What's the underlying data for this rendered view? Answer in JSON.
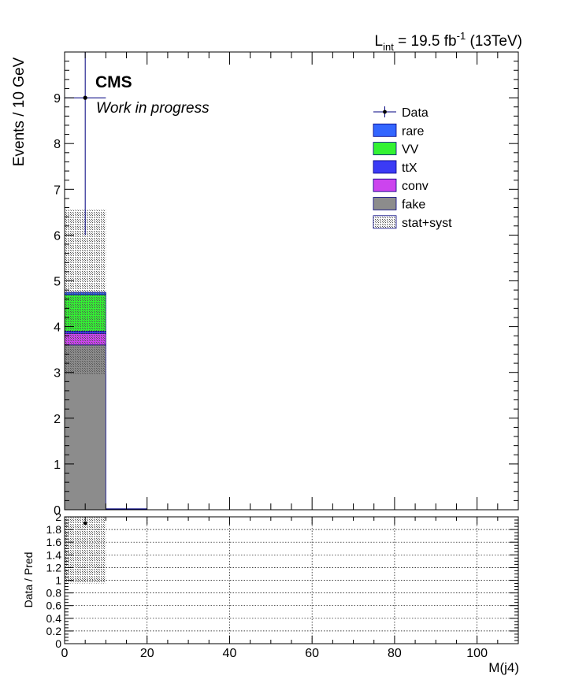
{
  "header": {
    "lumi_prefix": "L",
    "lumi_sub": "int",
    "lumi_mid": " = 19.5 fb",
    "lumi_sup": "-1",
    "lumi_suffix": " (13TeV)",
    "cms_label": "CMS",
    "cms_sublabel": "Work in progress"
  },
  "chart_data": [
    {
      "type": "bar",
      "subtype": "stacked-histogram",
      "ylabel": "Events / 10 GeV",
      "xlim": [
        0,
        110
      ],
      "ylim": [
        0,
        10
      ],
      "y_ticks": [
        0,
        1,
        2,
        3,
        4,
        5,
        6,
        7,
        8,
        9
      ],
      "x_ticks": [
        0,
        20,
        40,
        60,
        80,
        100
      ],
      "bin_width": 10,
      "bins": [
        [
          0,
          10
        ],
        [
          10,
          20
        ]
      ],
      "grid": false,
      "legend_position": "top-right",
      "series": [
        {
          "name": "fake",
          "color": "#8c8c8c",
          "values": [
            3.6,
            0.0
          ]
        },
        {
          "name": "conv",
          "color": "#cc44ee",
          "values": [
            0.25,
            0.0
          ]
        },
        {
          "name": "ttX",
          "color": "#3b3bf5",
          "values": [
            0.05,
            0.0
          ]
        },
        {
          "name": "VV",
          "color": "#33f233",
          "values": [
            0.8,
            0.0
          ]
        },
        {
          "name": "rare",
          "color": "#3366ff",
          "values": [
            0.05,
            0.0
          ]
        }
      ],
      "uncertainty": {
        "name": "stat+syst",
        "down": [
          2.95,
          0.0
        ],
        "up": [
          6.55,
          0.0
        ]
      },
      "data": {
        "name": "Data",
        "x": [
          5
        ],
        "y": [
          9
        ],
        "err_low": [
          3
        ],
        "err_high": [
          4.1
        ],
        "x_err": [
          5
        ]
      }
    },
    {
      "type": "scatter",
      "subtype": "ratio",
      "ylabel": "Data / Pred",
      "xlabel": "M(j4)",
      "xlim": [
        0,
        110
      ],
      "ylim": [
        0,
        2
      ],
      "x_ticks": [
        0,
        20,
        40,
        60,
        80,
        100
      ],
      "y_ticks": [
        0,
        0.2,
        0.4,
        0.6,
        0.8,
        1,
        1.2,
        1.4,
        1.6,
        1.8,
        2
      ],
      "grid": true,
      "points": [
        {
          "x": 5,
          "y": 1.9
        }
      ],
      "uncertainty_band": [
        {
          "x0": 0,
          "x1": 10,
          "low": 0.95,
          "high": 2.0
        }
      ]
    }
  ]
}
